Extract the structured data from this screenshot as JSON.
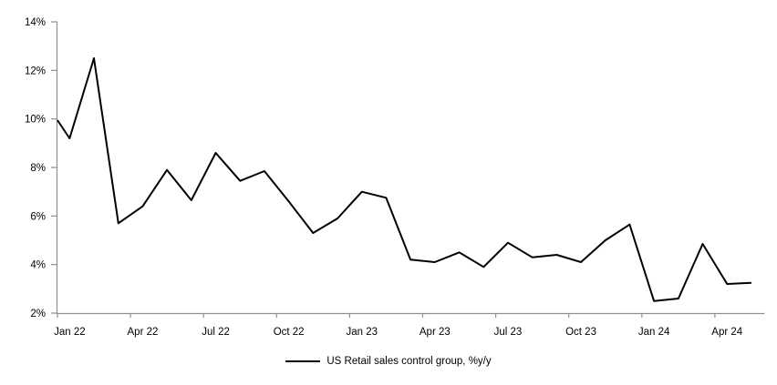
{
  "chart_data": {
    "type": "line",
    "title": "",
    "legend": "US Retail sales control group, %y/y",
    "legend_position": "bottom-center",
    "grid": false,
    "background": "#ffffff",
    "axis_color": "#8f8f8f",
    "label_color": "#000000",
    "ylim": [
      2,
      14
    ],
    "y_tick_step": 2,
    "y_tick_labels": [
      "2%",
      "4%",
      "6%",
      "8%",
      "10%",
      "12%",
      "14%"
    ],
    "x_tick_labels": [
      "Jan 22",
      "Apr 22",
      "Jul 22",
      "Oct 22",
      "Jan 23",
      "Apr 23",
      "Jul 23",
      "Oct 23",
      "Jan 24",
      "Apr 24"
    ],
    "categories": [
      "Jan 22",
      "Feb 22",
      "Mar 22",
      "Apr 22",
      "May 22",
      "Jun 22",
      "Jul 22",
      "Aug 22",
      "Sep 22",
      "Oct 22",
      "Nov 22",
      "Dec 22",
      "Jan 23",
      "Feb 23",
      "Mar 23",
      "Apr 23",
      "May 23",
      "Jun 23",
      "Jul 23",
      "Aug 23",
      "Sep 23",
      "Oct 23",
      "Nov 23",
      "Dec 23",
      "Jan 24",
      "Feb 24",
      "Mar 24",
      "Apr 24",
      "May 24"
    ],
    "series": [
      {
        "name": "US Retail sales control group, %y/y",
        "color": "#000000",
        "line_width": 2,
        "start_clipped_at_axis_value": 9.95,
        "values": [
          9.2,
          12.5,
          5.7,
          6.4,
          7.9,
          6.65,
          8.6,
          7.45,
          7.85,
          6.6,
          5.3,
          5.9,
          7.0,
          6.75,
          4.2,
          4.1,
          4.5,
          3.9,
          4.9,
          4.3,
          4.4,
          4.1,
          5.0,
          5.65,
          2.5,
          2.6,
          4.85,
          3.2,
          3.25
        ]
      }
    ]
  }
}
